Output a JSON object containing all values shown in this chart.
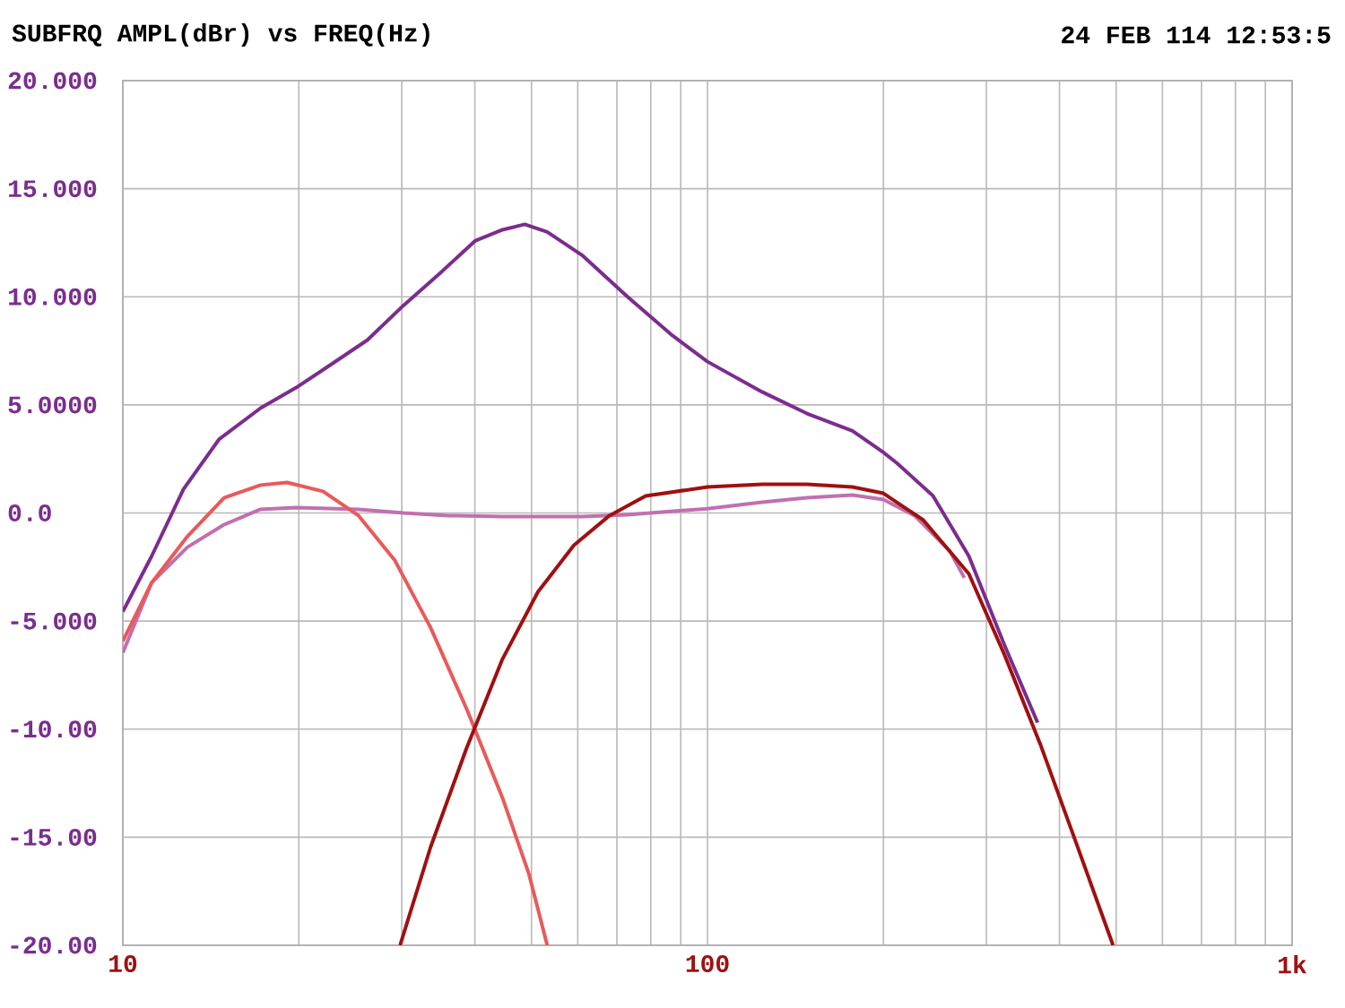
{
  "chart_data": {
    "type": "line",
    "title": "SUBFRQ AMPL(dBr) vs FREQ(Hz)",
    "subtitle": "24 FEB 114 12:53:5",
    "log": "x",
    "grid": true,
    "marker": "none",
    "line_style": "solid",
    "xlim": [
      10,
      1000
    ],
    "ylim": [
      -20,
      20
    ],
    "xticks": [
      {
        "value": 10,
        "label": "10"
      },
      {
        "value": 20,
        "label": null
      },
      {
        "value": 30,
        "label": null
      },
      {
        "value": 40,
        "label": null
      },
      {
        "value": 50,
        "label": null
      },
      {
        "value": 60,
        "label": null
      },
      {
        "value": 70,
        "label": null
      },
      {
        "value": 80,
        "label": null
      },
      {
        "value": 90,
        "label": null
      },
      {
        "value": 100,
        "label": "100"
      },
      {
        "value": 200,
        "label": null
      },
      {
        "value": 300,
        "label": null
      },
      {
        "value": 400,
        "label": null
      },
      {
        "value": 500,
        "label": null
      },
      {
        "value": 600,
        "label": null
      },
      {
        "value": 700,
        "label": null
      },
      {
        "value": 800,
        "label": null
      },
      {
        "value": 900,
        "label": null
      },
      {
        "value": 1000,
        "label": "1k"
      }
    ],
    "yticks": [
      {
        "value": 20,
        "label": "20.000"
      },
      {
        "value": 15,
        "label": "15.000"
      },
      {
        "value": 10,
        "label": "10.000"
      },
      {
        "value": 5,
        "label": "5.0000"
      },
      {
        "value": 0,
        "label": "0.0"
      },
      {
        "value": -5,
        "label": "-5.000"
      },
      {
        "value": -10,
        "label": "-10.00"
      },
      {
        "value": -15,
        "label": "-15.00"
      },
      {
        "value": -20,
        "label": "-20.00"
      }
    ],
    "series": [
      {
        "color": "#7b2d8e",
        "x": [
          10,
          11.2,
          12.7,
          14.6,
          17.2,
          19.8,
          22.8,
          26.2,
          30.2,
          34.8,
          40.1,
          44.6,
          48.7,
          53.2,
          61.2,
          73.0,
          87.2,
          100,
          124,
          148,
          177,
          200,
          211,
          243,
          280,
          322,
          367
        ],
        "values": [
          -4.56,
          -2.0,
          1.1,
          3.4,
          4.85,
          5.8,
          6.9,
          8.0,
          9.6,
          11.07,
          12.6,
          13.1,
          13.35,
          13.0,
          11.9,
          10.0,
          8.2,
          7.0,
          5.6,
          4.6,
          3.8,
          2.8,
          2.3,
          0.8,
          -2.0,
          -6.1,
          -9.7
        ]
      },
      {
        "color": "#c070b0",
        "x": [
          10,
          11.2,
          12.9,
          14.9,
          17.2,
          19.8,
          25.3,
          30.2,
          36.0,
          44.6,
          61.2,
          73.0,
          100,
          124,
          148,
          177,
          200,
          226,
          260,
          275
        ],
        "values": [
          -6.47,
          -3.23,
          -1.58,
          -0.54,
          0.17,
          0.25,
          0.17,
          0,
          -0.12,
          -0.17,
          -0.17,
          -0.08,
          0.2,
          0.5,
          0.7,
          0.83,
          0.62,
          -0.12,
          -1.78,
          -3.0
        ]
      },
      {
        "color": "#e85a5a",
        "x": [
          10,
          11.2,
          12.9,
          14.9,
          17.2,
          19.1,
          22.0,
          25.3,
          29.2,
          33.6,
          38.7,
          44.6,
          49.5,
          53.2
        ],
        "values": [
          -5.93,
          -3.23,
          -1.08,
          0.7,
          1.29,
          1.41,
          1.0,
          -0.12,
          -2.2,
          -5.3,
          -9.04,
          -13.18,
          -16.7,
          -20
        ]
      },
      {
        "color": "#a01010",
        "x": [
          29.8,
          33.6,
          38.7,
          44.6,
          51.3,
          59.1,
          68.0,
          78.4,
          100,
          124,
          148,
          177,
          200,
          234,
          280,
          322,
          371,
          427,
          494
        ],
        "values": [
          -20,
          -15.46,
          -10.9,
          -6.76,
          -3.65,
          -1.49,
          -0.12,
          0.79,
          1.2,
          1.33,
          1.33,
          1.2,
          0.91,
          -0.33,
          -2.82,
          -6.55,
          -10.7,
          -15.25,
          -20
        ]
      }
    ]
  }
}
